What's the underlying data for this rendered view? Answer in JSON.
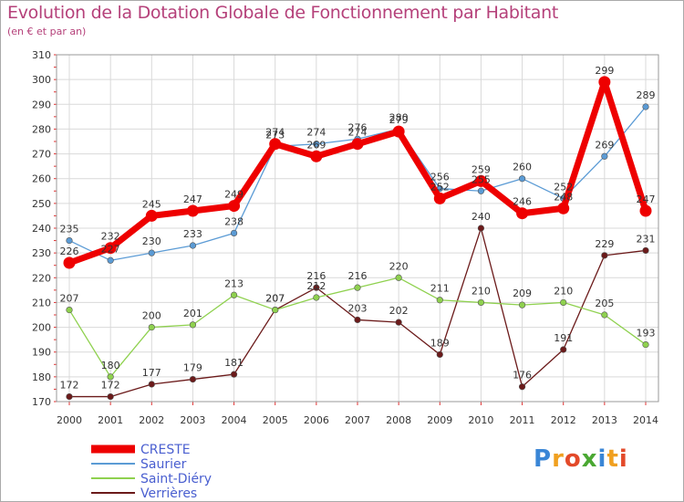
{
  "title": "Evolution de la Dotation Globale de Fonctionnement par Habitant",
  "subtitle": "(en € et par an)",
  "logo_text": "Proxiti",
  "colors": {
    "title": "#b5417a",
    "axis_text": "#333333",
    "legend_text": "#4a5fd0",
    "grid": "#d9d9d9",
    "tick_red": "#e03030",
    "plot_border": "#999999"
  },
  "chart_data": {
    "type": "line",
    "x": [
      2000,
      2001,
      2002,
      2003,
      2004,
      2005,
      2006,
      2007,
      2008,
      2009,
      2010,
      2011,
      2012,
      2013,
      2014
    ],
    "ylim": [
      170,
      310
    ],
    "yticks": [
      170,
      180,
      190,
      200,
      210,
      220,
      230,
      240,
      250,
      260,
      270,
      280,
      290,
      300,
      310
    ],
    "grid": true,
    "legend_position": "bottom-left",
    "series": [
      {
        "name": "CRESTE",
        "color": "#ee0000",
        "width": 7,
        "values": [
          226,
          232,
          245,
          247,
          249,
          274,
          269,
          274,
          279,
          252,
          259,
          246,
          248,
          299,
          247
        ]
      },
      {
        "name": "Saurier",
        "color": "#5b9bd5",
        "width": 1.3,
        "values": [
          235,
          227,
          230,
          233,
          238,
          273,
          274,
          276,
          280,
          256,
          255,
          260,
          252,
          269,
          289
        ]
      },
      {
        "name": "Saint-Diéry",
        "color": "#8fd14f",
        "width": 1.3,
        "values": [
          207,
          180,
          200,
          201,
          213,
          207,
          212,
          216,
          220,
          211,
          210,
          209,
          210,
          205,
          193
        ]
      },
      {
        "name": "Verrières",
        "color": "#6b1a1a",
        "width": 1.3,
        "values": [
          172,
          172,
          177,
          179,
          181,
          207,
          216,
          203,
          202,
          189,
          240,
          176,
          191,
          229,
          231
        ]
      }
    ]
  }
}
